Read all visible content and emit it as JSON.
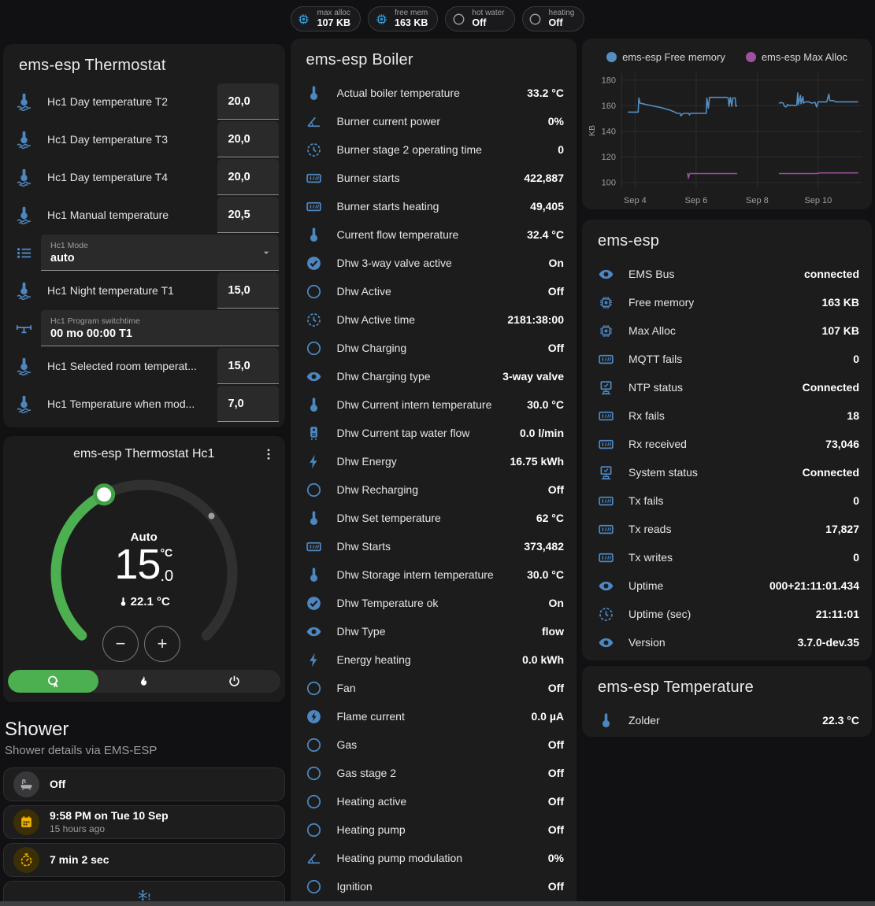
{
  "badges": [
    {
      "label": "max alloc",
      "value": "107 KB",
      "icon": "chip",
      "color": "blue"
    },
    {
      "label": "free mem",
      "value": "163 KB",
      "icon": "chip",
      "color": "blue"
    },
    {
      "label": "hot water",
      "value": "Off",
      "icon": "circle",
      "color": "gray"
    },
    {
      "label": "heating",
      "value": "Off",
      "icon": "circle",
      "color": "gray"
    }
  ],
  "thermostat_card": {
    "title": "ems-esp Thermostat",
    "rows": [
      {
        "type": "number",
        "icon": "thermometer-water",
        "label": "Hc1 Day temperature T2",
        "value": "20,0"
      },
      {
        "type": "number",
        "icon": "thermometer-water",
        "label": "Hc1 Day temperature T3",
        "value": "20,0"
      },
      {
        "type": "number",
        "icon": "thermometer-water",
        "label": "Hc1 Day temperature T4",
        "value": "20,0"
      },
      {
        "type": "number",
        "icon": "thermometer-water",
        "label": "Hc1 Manual temperature",
        "value": "20,5"
      },
      {
        "type": "select",
        "icon": "list",
        "label": "Hc1 Mode",
        "value": "auto"
      },
      {
        "type": "number",
        "icon": "thermometer-water",
        "label": "Hc1 Night temperature T1",
        "value": "15,0"
      },
      {
        "type": "text",
        "icon": "valve",
        "label": "Hc1 Program switchtime",
        "value": "00 mo 00:00 T1"
      },
      {
        "type": "number",
        "icon": "thermometer-water",
        "label": "Hc1 Selected room temperat...",
        "value": "15,0"
      },
      {
        "type": "number",
        "icon": "thermometer-water",
        "label": "Hc1 Temperature when mod...",
        "value": "7,0"
      }
    ]
  },
  "hc1_card": {
    "title": "ems-esp Thermostat Hc1",
    "mode_label": "Auto",
    "target_int": "15",
    "target_unit": "°C",
    "target_dec": ".0",
    "current": "22.1 °C",
    "minus_glyph": "−",
    "plus_glyph": "+",
    "modes": [
      {
        "icon": "thermostat-auto",
        "active": true
      },
      {
        "icon": "fire",
        "active": false
      },
      {
        "icon": "power",
        "active": false
      }
    ],
    "accent_green": "#4caf50"
  },
  "shower": {
    "title": "Shower",
    "subtitle": "Shower details via EMS-ESP",
    "items": [
      {
        "icon": "bathtub",
        "primary": "Off",
        "secondary": "",
        "variant": "gray"
      },
      {
        "icon": "calendar",
        "primary": "9:58 PM on Tue 10 Sep",
        "secondary": "15 hours ago",
        "variant": "amber"
      },
      {
        "icon": "timer",
        "primary": "7 min 2 sec",
        "secondary": "",
        "variant": "amber"
      },
      {
        "icon": "snowflake-alert",
        "primary": "",
        "secondary": "",
        "variant": "alert"
      }
    ]
  },
  "boiler_card": {
    "title": "ems-esp Boiler",
    "rows": [
      {
        "icon": "thermometer",
        "label": "Actual boiler temperature",
        "value": "33.2 °C"
      },
      {
        "icon": "angle",
        "label": "Burner current power",
        "value": "0%"
      },
      {
        "icon": "clock",
        "label": "Burner stage 2 operating time",
        "value": "0"
      },
      {
        "icon": "counter",
        "label": "Burner starts",
        "value": "422,887"
      },
      {
        "icon": "counter",
        "label": "Burner starts heating",
        "value": "49,405"
      },
      {
        "icon": "thermometer",
        "label": "Current flow temperature",
        "value": "32.4 °C"
      },
      {
        "icon": "check-circle",
        "label": "Dhw 3-way valve active",
        "value": "On"
      },
      {
        "icon": "circle",
        "label": "Dhw Active",
        "value": "Off"
      },
      {
        "icon": "clock",
        "label": "Dhw Active time",
        "value": "2181:38:00"
      },
      {
        "icon": "circle",
        "label": "Dhw Charging",
        "value": "Off"
      },
      {
        "icon": "eye",
        "label": "Dhw Charging type",
        "value": "3-way valve"
      },
      {
        "icon": "thermometer",
        "label": "Dhw Current intern temperature",
        "value": "30.0 °C"
      },
      {
        "icon": "water-heater",
        "label": "Dhw Current tap water flow",
        "value": "0.0 l/min"
      },
      {
        "icon": "flash",
        "label": "Dhw Energy",
        "value": "16.75 kWh"
      },
      {
        "icon": "circle",
        "label": "Dhw Recharging",
        "value": "Off"
      },
      {
        "icon": "thermometer",
        "label": "Dhw Set temperature",
        "value": "62 °C"
      },
      {
        "icon": "counter",
        "label": "Dhw Starts",
        "value": "373,482"
      },
      {
        "icon": "thermometer",
        "label": "Dhw Storage intern temperature",
        "value": "30.0 °C"
      },
      {
        "icon": "check-circle",
        "label": "Dhw Temperature ok",
        "value": "On"
      },
      {
        "icon": "eye",
        "label": "Dhw Type",
        "value": "flow"
      },
      {
        "icon": "flash",
        "label": "Energy heating",
        "value": "0.0 kWh"
      },
      {
        "icon": "circle",
        "label": "Fan",
        "value": "Off"
      },
      {
        "icon": "flash-circle",
        "label": "Flame current",
        "value": "0.0 µA"
      },
      {
        "icon": "circle",
        "label": "Gas",
        "value": "Off"
      },
      {
        "icon": "circle",
        "label": "Gas stage 2",
        "value": "Off"
      },
      {
        "icon": "circle",
        "label": "Heating active",
        "value": "Off"
      },
      {
        "icon": "circle",
        "label": "Heating pump",
        "value": "Off"
      },
      {
        "icon": "angle",
        "label": "Heating pump modulation",
        "value": "0%"
      },
      {
        "icon": "circle",
        "label": "Ignition",
        "value": "Off"
      }
    ]
  },
  "emsesp_card": {
    "title": "ems-esp",
    "rows": [
      {
        "icon": "eye",
        "label": "EMS Bus",
        "value": "connected"
      },
      {
        "icon": "chip",
        "label": "Free memory",
        "value": "163 KB"
      },
      {
        "icon": "chip",
        "label": "Max Alloc",
        "value": "107 KB"
      },
      {
        "icon": "counter",
        "label": "MQTT fails",
        "value": "0"
      },
      {
        "icon": "network",
        "label": "NTP status",
        "value": "Connected"
      },
      {
        "icon": "counter",
        "label": "Rx fails",
        "value": "18"
      },
      {
        "icon": "counter",
        "label": "Rx received",
        "value": "73,046"
      },
      {
        "icon": "network",
        "label": "System status",
        "value": "Connected"
      },
      {
        "icon": "counter",
        "label": "Tx fails",
        "value": "0"
      },
      {
        "icon": "counter",
        "label": "Tx reads",
        "value": "17,827"
      },
      {
        "icon": "counter",
        "label": "Tx writes",
        "value": "0"
      },
      {
        "icon": "eye",
        "label": "Uptime",
        "value": "000+21:11:01.434"
      },
      {
        "icon": "clock",
        "label": "Uptime (sec)",
        "value": "21:11:01"
      },
      {
        "icon": "eye",
        "label": "Version",
        "value": "3.7.0-dev.35"
      }
    ]
  },
  "temperature_card": {
    "title": "ems-esp Temperature",
    "rows": [
      {
        "icon": "thermometer",
        "label": "Zolder",
        "value": "22.3 °C"
      }
    ]
  },
  "chart_data": {
    "type": "line",
    "ylabel": "KB",
    "ylim": [
      95,
      186
    ],
    "yticks": [
      100,
      120,
      140,
      160,
      180
    ],
    "xlim": [
      3.55,
      11.45
    ],
    "xticks": [
      {
        "day": 4,
        "label": "Sep 4"
      },
      {
        "day": 6,
        "label": "Sep 6"
      },
      {
        "day": 8,
        "label": "Sep 8"
      },
      {
        "day": 10,
        "label": "Sep 10"
      }
    ],
    "grid": true,
    "legend_position": "top",
    "series": [
      {
        "name": "ems-esp Free memory",
        "color": "#548fc0",
        "segments": [
          [
            [
              3.78,
              155
            ],
            [
              4.1,
              155
            ],
            [
              4.12,
              166
            ],
            [
              4.16,
              162
            ],
            [
              4.25,
              161.5
            ],
            [
              4.45,
              160.5
            ],
            [
              4.65,
              159.5
            ],
            [
              4.85,
              158.5
            ],
            [
              5.0,
              157.5
            ],
            [
              5.15,
              156.5
            ],
            [
              5.25,
              155.5
            ],
            [
              5.3,
              155
            ],
            [
              5.38,
              154
            ],
            [
              5.48,
              154
            ],
            [
              5.5,
              152
            ],
            [
              5.55,
              153.5
            ],
            [
              5.6,
              154
            ],
            [
              5.75,
              154
            ],
            [
              5.78,
              152.8
            ],
            [
              5.82,
              154
            ],
            [
              6.33,
              154
            ],
            [
              6.35,
              166
            ],
            [
              6.4,
              158
            ],
            [
              6.44,
              166.5
            ],
            [
              6.55,
              166.5
            ],
            [
              7.0,
              166.5
            ],
            [
              7.05,
              166
            ],
            [
              7.08,
              159.5
            ],
            [
              7.12,
              166.5
            ],
            [
              7.17,
              159.5
            ],
            [
              7.2,
              166
            ],
            [
              7.28,
              166
            ],
            [
              7.3,
              159.5
            ],
            [
              7.33,
              160
            ]
          ],
          [
            [
              8.73,
              162
            ],
            [
              8.78,
              162.5
            ],
            [
              8.85,
              162
            ],
            [
              8.9,
              159.5
            ],
            [
              8.95,
              159
            ],
            [
              9.0,
              161
            ],
            [
              9.05,
              160
            ],
            [
              9.12,
              160.5
            ],
            [
              9.25,
              160
            ],
            [
              9.3,
              160.5
            ],
            [
              9.33,
              170
            ],
            [
              9.35,
              161
            ],
            [
              9.42,
              168
            ],
            [
              9.44,
              161.5
            ],
            [
              9.5,
              167
            ],
            [
              9.52,
              162
            ],
            [
              9.58,
              163
            ],
            [
              9.7,
              163
            ],
            [
              9.78,
              162
            ],
            [
              9.9,
              162.5
            ],
            [
              9.95,
              159
            ],
            [
              10.0,
              163
            ],
            [
              10.28,
              163
            ],
            [
              10.35,
              169
            ],
            [
              10.38,
              164
            ],
            [
              10.5,
              164
            ],
            [
              10.58,
              163
            ],
            [
              10.75,
              163
            ],
            [
              11.3,
              163
            ]
          ]
        ]
      },
      {
        "name": "ems-esp Max Alloc",
        "color": "#9c51a1",
        "segments": [
          [
            [
              5.72,
              107
            ],
            [
              5.75,
              103.5
            ],
            [
              5.78,
              107
            ],
            [
              7.33,
              107
            ]
          ],
          [
            [
              8.73,
              107
            ],
            [
              9.98,
              107
            ],
            [
              10.02,
              107.5
            ],
            [
              11.3,
              107.5
            ]
          ]
        ]
      }
    ]
  },
  "icons_misc": {
    "menu": "dots-vertical",
    "dropdown": "chevron-down",
    "decrease": "minus",
    "increase": "plus"
  }
}
